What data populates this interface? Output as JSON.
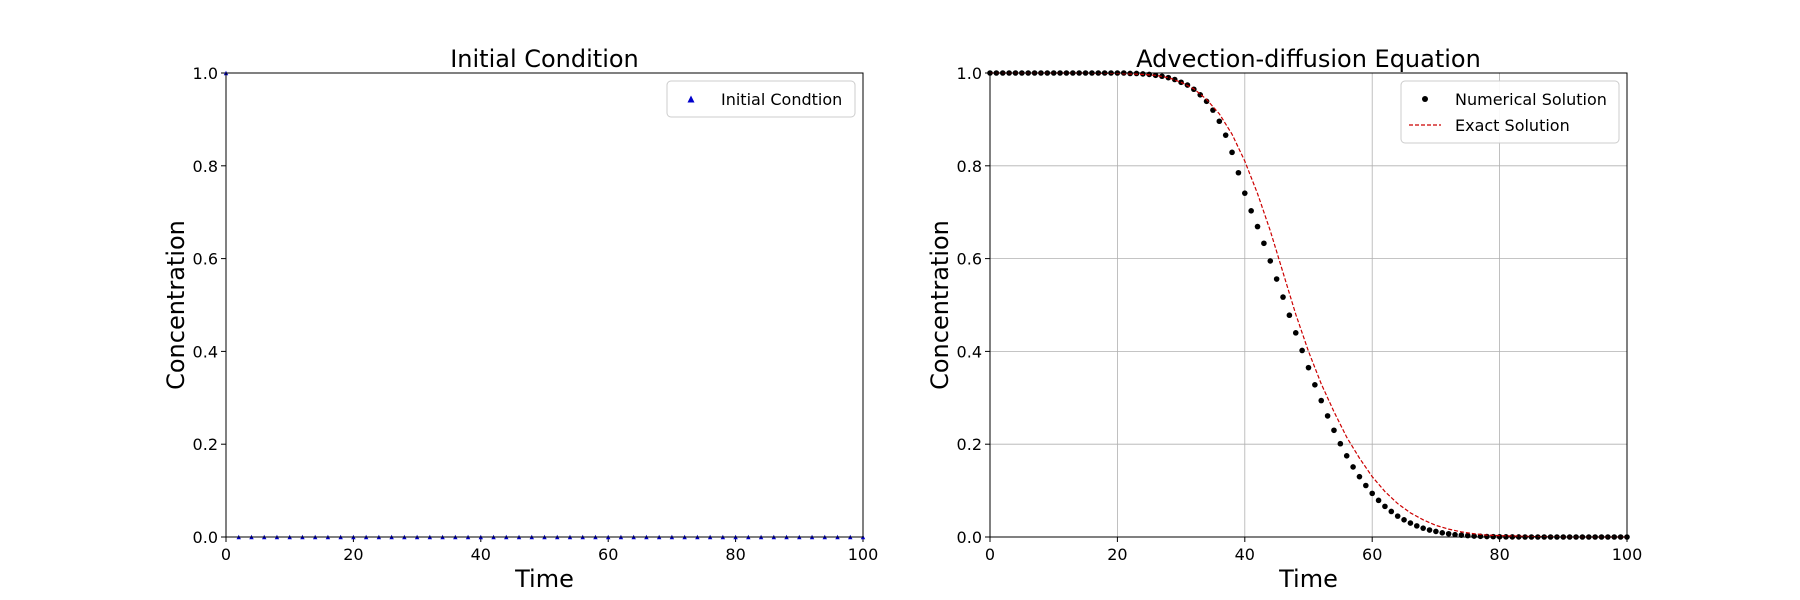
{
  "chart_data": [
    {
      "type": "scatter",
      "title": "Initial Condition",
      "xlabel": "Time",
      "ylabel": "Concentration",
      "xlim": [
        0,
        100
      ],
      "ylim": [
        0,
        1
      ],
      "x_ticks": [
        0,
        20,
        40,
        60,
        80,
        100
      ],
      "y_ticks": [
        0.0,
        0.2,
        0.4,
        0.6,
        0.8,
        1.0
      ],
      "grid": false,
      "legend_position": "top-right",
      "series": [
        {
          "name": "Initial Condtion",
          "marker": "triangle",
          "color": "#0000cc",
          "x": [
            0,
            2,
            4,
            6,
            8,
            10,
            12,
            14,
            16,
            18,
            20,
            22,
            24,
            26,
            28,
            30,
            32,
            34,
            36,
            38,
            40,
            42,
            44,
            46,
            48,
            50,
            52,
            54,
            56,
            58,
            60,
            62,
            64,
            66,
            68,
            70,
            72,
            74,
            76,
            78,
            80,
            82,
            84,
            86,
            88,
            90,
            92,
            94,
            96,
            98,
            100
          ],
          "y": [
            1,
            0,
            0,
            0,
            0,
            0,
            0,
            0,
            0,
            0,
            0,
            0,
            0,
            0,
            0,
            0,
            0,
            0,
            0,
            0,
            0,
            0,
            0,
            0,
            0,
            0,
            0,
            0,
            0,
            0,
            0,
            0,
            0,
            0,
            0,
            0,
            0,
            0,
            0,
            0,
            0,
            0,
            0,
            0,
            0,
            0,
            0,
            0,
            0,
            0,
            0
          ]
        }
      ]
    },
    {
      "type": "line",
      "title": "Advection-diffusion Equation",
      "xlabel": "Time",
      "ylabel": "Concentration",
      "xlim": [
        0,
        100
      ],
      "ylim": [
        0,
        1
      ],
      "x_ticks": [
        0,
        20,
        40,
        60,
        80,
        100
      ],
      "y_ticks": [
        0.0,
        0.2,
        0.4,
        0.6,
        0.8,
        1.0
      ],
      "grid": true,
      "legend_position": "top-right",
      "series": [
        {
          "name": "Numerical Solution",
          "marker": "circle",
          "color": "#000000",
          "x": [
            0,
            1,
            2,
            3,
            4,
            5,
            6,
            7,
            8,
            9,
            10,
            11,
            12,
            13,
            14,
            15,
            16,
            17,
            18,
            19,
            20,
            21,
            22,
            23,
            24,
            25,
            26,
            27,
            28,
            29,
            30,
            31,
            32,
            33,
            34,
            35,
            36,
            37,
            38,
            39,
            40,
            41,
            42,
            43,
            44,
            45,
            46,
            47,
            48,
            49,
            50,
            51,
            52,
            53,
            54,
            55,
            56,
            57,
            58,
            59,
            60,
            61,
            62,
            63,
            64,
            65,
            66,
            67,
            68,
            69,
            70,
            71,
            72,
            73,
            74,
            75,
            76,
            77,
            78,
            79,
            80,
            81,
            82,
            83,
            84,
            85,
            86,
            87,
            88,
            89,
            90,
            91,
            92,
            93,
            94,
            95,
            96,
            97,
            98,
            99,
            100
          ],
          "y": [
            1.0,
            1.0,
            1.0,
            1.0,
            1.0,
            1.0,
            1.0,
            1.0,
            1.0,
            1.0,
            1.0,
            1.0,
            1.0,
            1.0,
            1.0,
            1.0,
            1.0,
            1.0,
            1.0,
            1.0,
            1.0,
            1.0,
            0.999,
            0.999,
            0.998,
            0.997,
            0.995,
            0.993,
            0.99,
            0.986,
            0.98,
            0.974,
            0.965,
            0.953,
            0.939,
            0.92,
            0.896,
            0.866,
            0.829,
            0.785,
            0.741,
            0.703,
            0.669,
            0.633,
            0.595,
            0.556,
            0.517,
            0.478,
            0.44,
            0.402,
            0.365,
            0.328,
            0.294,
            0.261,
            0.23,
            0.201,
            0.175,
            0.151,
            0.13,
            0.111,
            0.094,
            0.079,
            0.066,
            0.055,
            0.045,
            0.037,
            0.03,
            0.024,
            0.019,
            0.015,
            0.012,
            0.009,
            0.007,
            0.005,
            0.004,
            0.003,
            0.002,
            0.0015,
            0.001,
            0.0008,
            0.0005,
            0.0003,
            0.0002,
            0.0001,
            0.0,
            0.0,
            0.0,
            0.0,
            0.0,
            0.0,
            0.0,
            0.0,
            0.0,
            0.0,
            0.0,
            0.0,
            0.0,
            0.0,
            0.0,
            0.0,
            0.0
          ]
        },
        {
          "name": "Exact Solution",
          "line_style": "dashed",
          "color": "#cc0000",
          "x": [
            0,
            5,
            10,
            15,
            20,
            22,
            24,
            26,
            28,
            30,
            32,
            34,
            36,
            38,
            40,
            42,
            44,
            46,
            48,
            50,
            52,
            54,
            56,
            58,
            60,
            62,
            64,
            66,
            68,
            70,
            72,
            74,
            76,
            78,
            80,
            85,
            90,
            95,
            100
          ],
          "y": [
            1.0,
            1.0,
            1.0,
            1.0,
            0.999,
            0.998,
            0.997,
            0.995,
            0.99,
            0.98,
            0.966,
            0.943,
            0.912,
            0.868,
            0.81,
            0.74,
            0.66,
            0.57,
            0.48,
            0.4,
            0.33,
            0.27,
            0.215,
            0.17,
            0.13,
            0.098,
            0.072,
            0.052,
            0.037,
            0.025,
            0.017,
            0.011,
            0.007,
            0.004,
            0.003,
            0.001,
            0.0,
            0.0,
            0.0
          ]
        }
      ]
    }
  ]
}
